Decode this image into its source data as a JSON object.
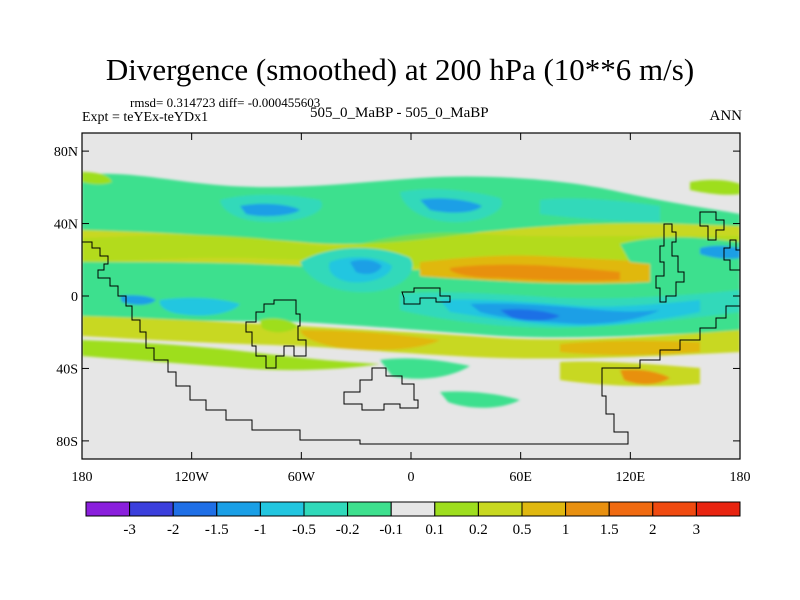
{
  "title": "Divergence (smoothed) at 200 hPa (10**6 m/s)",
  "stats": {
    "rmsd_label": "rmsd= 0.314723",
    "diff_label": "diff= -0.000455603"
  },
  "expt": "Expt = teYEx-teYDx1",
  "case": "505_0_MaBP - 505_0_MaBP",
  "season": "ANN",
  "lat_labels": [
    "80N",
    "40N",
    "0",
    "40S",
    "80S"
  ],
  "lat_values": [
    80,
    40,
    0,
    -40,
    -80
  ],
  "lon_labels": [
    "180",
    "120W",
    "60W",
    "0",
    "60E",
    "120E",
    "180"
  ],
  "lon_values": [
    -180,
    -120,
    -60,
    0,
    60,
    120,
    180
  ],
  "colorbar": {
    "labels": [
      "-3",
      "-2",
      "-1.5",
      "-1",
      "-0.5",
      "-0.2",
      "-0.1",
      "0.1",
      "0.2",
      "0.5",
      "1",
      "1.5",
      "2",
      "3"
    ],
    "colors": [
      "#8a1fdc",
      "#3b3fdc",
      "#1f6fe6",
      "#1a9fe6",
      "#22c6e0",
      "#30d9ba",
      "#3ee08e",
      "#e6e6e6",
      "#9ede1e",
      "#c8d820",
      "#e0b810",
      "#e89010",
      "#f06a10",
      "#f04a10",
      "#e82410"
    ]
  },
  "fields": {
    "background": "#e6e6e6",
    "coast": "#000000"
  }
}
